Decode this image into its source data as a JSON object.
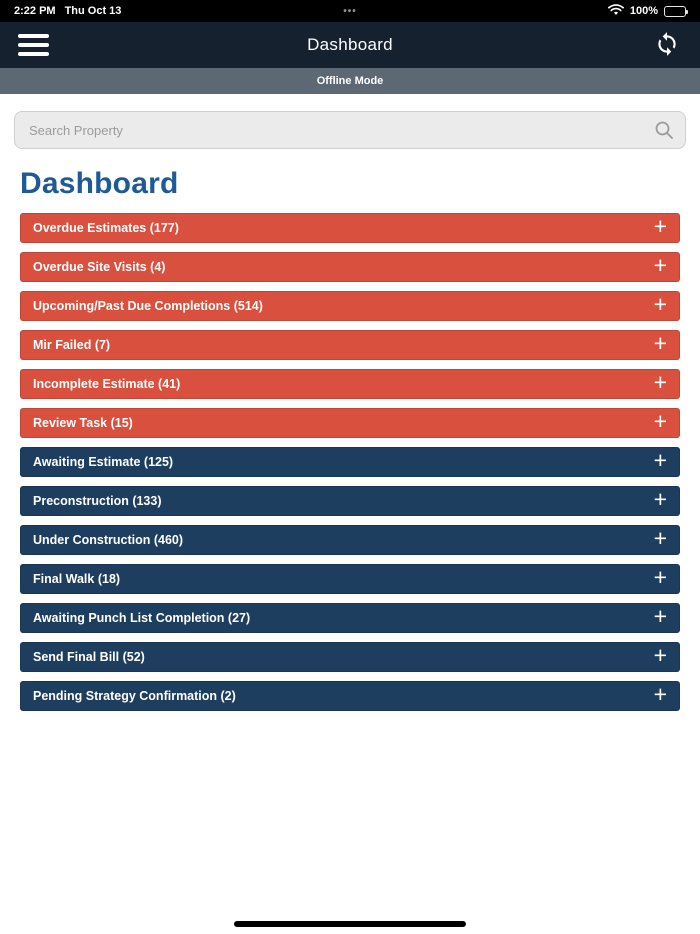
{
  "colors": {
    "red": "#d9503f",
    "navy": "#1d3e5e",
    "nav_bar": "#15212f",
    "offline_bar": "#5c6874",
    "heading": "#1e5a96"
  },
  "status_bar": {
    "time": "2:22 PM",
    "date": "Thu Oct 13",
    "multitask_dots": "•••",
    "battery_percent": "100%",
    "wifi_icon": "wifi",
    "battery_icon": "battery-full"
  },
  "nav": {
    "title": "Dashboard",
    "menu_icon": "hamburger-menu",
    "refresh_icon": "sync-arrows"
  },
  "offline_banner": {
    "label": "Offline Mode"
  },
  "search": {
    "placeholder": "Search Property",
    "icon": "magnifier"
  },
  "page": {
    "title": "Dashboard"
  },
  "sections": [
    {
      "label": "Overdue Estimates (177)",
      "color": "red"
    },
    {
      "label": "Overdue Site Visits (4)",
      "color": "red"
    },
    {
      "label": "Upcoming/Past Due Completions (514)",
      "color": "red"
    },
    {
      "label": "Mir Failed (7)",
      "color": "red"
    },
    {
      "label": "Incomplete Estimate (41)",
      "color": "red"
    },
    {
      "label": "Review Task (15)",
      "color": "red"
    },
    {
      "label": "Awaiting Estimate (125)",
      "color": "navy"
    },
    {
      "label": "Preconstruction (133)",
      "color": "navy"
    },
    {
      "label": "Under Construction (460)",
      "color": "navy"
    },
    {
      "label": "Final Walk (18)",
      "color": "navy"
    },
    {
      "label": "Awaiting Punch List Completion (27)",
      "color": "navy"
    },
    {
      "label": "Send Final Bill (52)",
      "color": "navy"
    },
    {
      "label": "Pending Strategy Confirmation (2)",
      "color": "navy"
    }
  ]
}
